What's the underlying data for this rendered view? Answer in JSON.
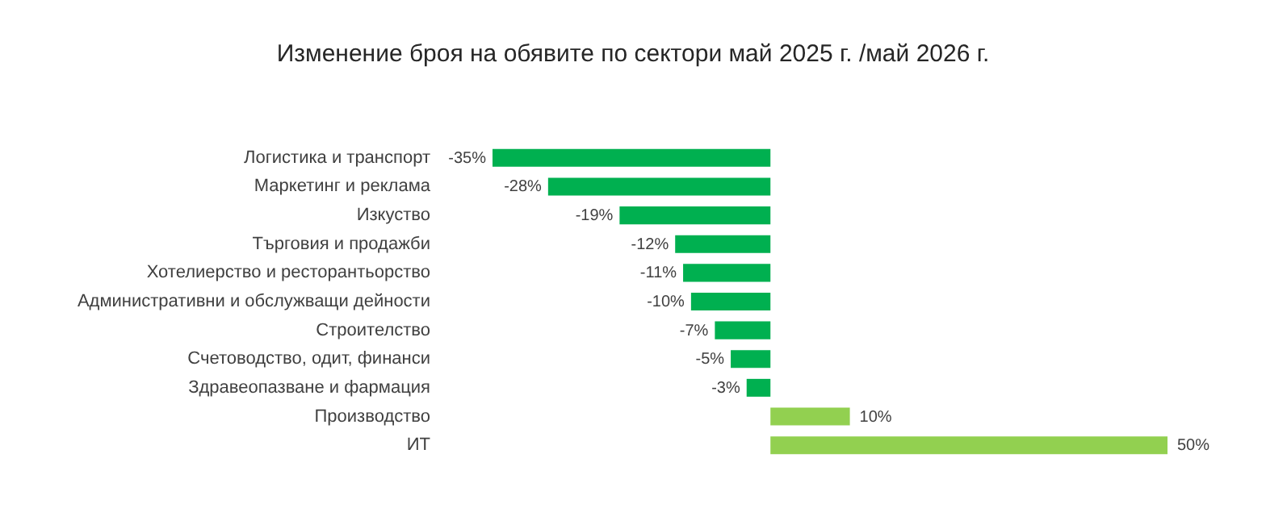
{
  "chart_data": {
    "type": "bar",
    "orientation": "horizontal",
    "title": "Изменение броя на обявите по сектори май 2025 г. /май 2026 г.",
    "categories": [
      "Логистика и транспорт",
      "Маркетинг и реклама",
      "Изкуство",
      "Търговия и продажби",
      "Хотелиерство и ресторантьорство",
      "Административни и обслужващи дейности",
      "Строителство",
      "Счетоводство, одит, финанси",
      "Здравеопазване и фармация",
      "Производство",
      "ИТ"
    ],
    "values": [
      -35,
      -28,
      -19,
      -12,
      -11,
      -10,
      -7,
      -5,
      -3,
      10,
      50
    ],
    "value_labels": [
      "-35%",
      "-28%",
      "-19%",
      "-12%",
      "-11%",
      "-10%",
      "-7%",
      "-5%",
      "-3%",
      "10%",
      "50%"
    ],
    "colors": [
      "#00b050",
      "#00b050",
      "#00b050",
      "#00b050",
      "#00b050",
      "#00b050",
      "#00b050",
      "#00b050",
      "#00b050",
      "#92d050",
      "#92d050"
    ],
    "grid": false
  }
}
